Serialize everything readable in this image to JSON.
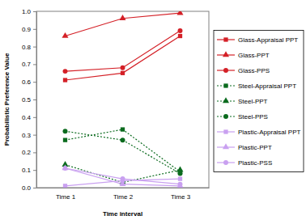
{
  "chart_data": {
    "type": "line",
    "x_label": "Time interval",
    "y_label": "Probabilistic Preference Value",
    "categories": [
      "Time 1",
      "Time 2",
      "Time 3"
    ],
    "ylim": [
      0,
      1
    ],
    "yticks": [
      {
        "value": 0,
        "label": "0.0"
      },
      0.1,
      0.2,
      0.3,
      0.4,
      0.5,
      0.6,
      0.7,
      0.8,
      0.9,
      {
        "value": 1,
        "label": "1.0"
      }
    ],
    "grid": false,
    "legend": "right",
    "series": [
      {
        "name": "Glass-Appraisal PPT",
        "color": "#d42027",
        "marker": "square",
        "line_style": "solid",
        "values": [
          0.61,
          0.65,
          0.86
        ]
      },
      {
        "name": "Glass-PPT",
        "color": "#d42027",
        "marker": "triangle",
        "line_style": "solid",
        "values": [
          0.86,
          0.96,
          0.99
        ]
      },
      {
        "name": "Glass-PPS",
        "color": "#d42027",
        "marker": "circle",
        "line_style": "solid",
        "values": [
          0.66,
          0.68,
          0.89
        ]
      },
      {
        "name": "Steel-Appraisal PPT",
        "color": "#0b6b1e",
        "marker": "square",
        "line_style": "dotted",
        "values": [
          0.27,
          0.33,
          0.09
        ]
      },
      {
        "name": "Steel-PPT",
        "color": "#0b6b1e",
        "marker": "triangle",
        "line_style": "dotted",
        "values": [
          0.13,
          0.03,
          0.1
        ]
      },
      {
        "name": "Steel-PPS",
        "color": "#0b6b1e",
        "marker": "circle",
        "line_style": "dotted",
        "values": [
          0.32,
          0.27,
          0.08
        ]
      },
      {
        "name": "Plastic-Appraisal PPT",
        "color": "#c9a0f0",
        "marker": "square",
        "line_style": "solid",
        "values": [
          0.01,
          0.04,
          0.05
        ]
      },
      {
        "name": "Plastic-PPT",
        "color": "#c9a0f0",
        "marker": "triangle",
        "line_style": "solid",
        "values": [
          0.11,
          0.02,
          0.01
        ]
      },
      {
        "name": "Plastic-PSS",
        "color": "#c9a0f0",
        "marker": "circle",
        "line_style": "solid",
        "values": [
          0.11,
          0.05,
          0.02
        ]
      }
    ]
  }
}
